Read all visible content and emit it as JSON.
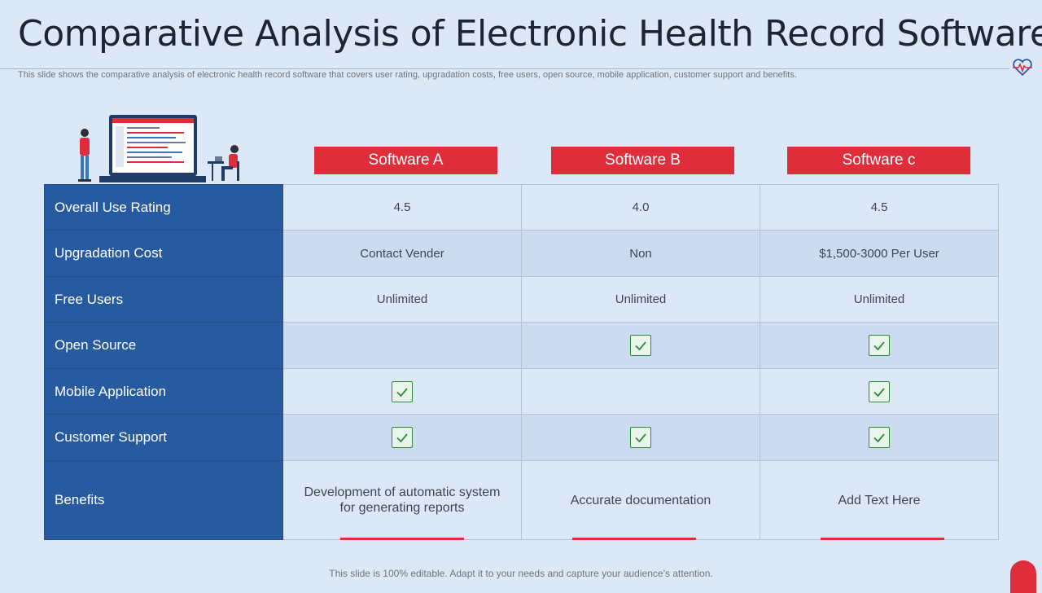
{
  "slide": {
    "title": "Comparative Analysis of Electronic Health Record Software",
    "subtitle": "This slide shows the comparative analysis of electronic health record software that covers user rating, upgradation costs, free users, open source, mobile application, customer support and benefits.",
    "footer": "This slide is 100% editable. Adapt it to your needs and capture your audience’s attention.",
    "accent_color": "#e02d3c",
    "label_color": "#285aa0"
  },
  "columns": [
    "Software A",
    "Software B",
    "Software c"
  ],
  "rows": [
    {
      "label": "Overall Use Rating",
      "values": [
        "4.5",
        "4.0",
        "4.5"
      ]
    },
    {
      "label": "Upgradation Cost",
      "values": [
        "Contact Vender",
        "Non",
        "$1,500-3000 Per User"
      ]
    },
    {
      "label": "Free Users",
      "values": [
        "Unlimited",
        "Unlimited",
        "Unlimited"
      ]
    },
    {
      "label": "Open Source",
      "checks": [
        false,
        true,
        true
      ]
    },
    {
      "label": "Mobile Application",
      "checks": [
        true,
        false,
        true
      ]
    },
    {
      "label": "Customer Support",
      "checks": [
        true,
        true,
        true
      ]
    },
    {
      "label": "Benefits",
      "values": [
        "Development of automatic system for generating reports",
        "Accurate documentation",
        "Add Text Here"
      ]
    }
  ],
  "icons": {
    "heart": "heart-pulse-icon",
    "check": "check-box-icon"
  }
}
